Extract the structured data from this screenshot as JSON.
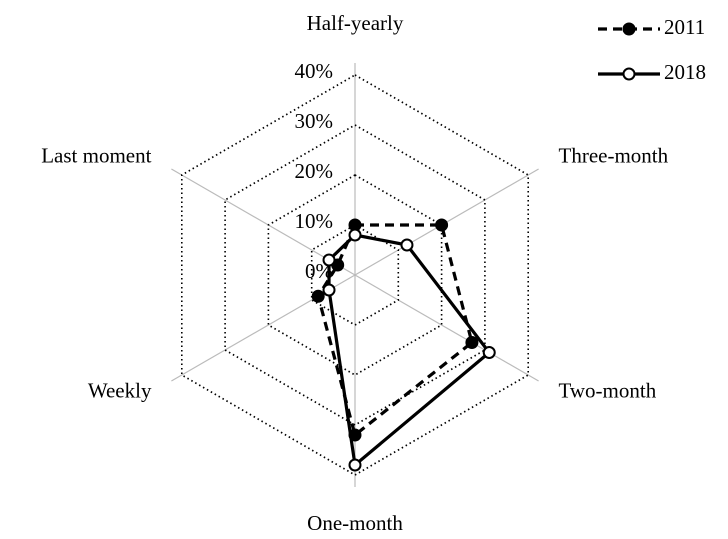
{
  "chart_data": {
    "type": "radar",
    "categories": [
      "Half-yearly",
      "Three-month",
      "Two-month",
      "One-month",
      "Weekly",
      "Last moment"
    ],
    "series": [
      {
        "name": "2011",
        "color": "#000000",
        "line_style": "dashed",
        "marker": "filled",
        "values": [
          10,
          20,
          27,
          32,
          8.5,
          4
        ]
      },
      {
        "name": "2018",
        "color": "#000000",
        "line_style": "solid",
        "marker": "open",
        "values": [
          8,
          12,
          31,
          38,
          6,
          6
        ]
      }
    ],
    "ylim": [
      0,
      40
    ],
    "yticks": [
      {
        "value": 0,
        "label": "0%"
      },
      {
        "value": 10,
        "label": "10%"
      },
      {
        "value": 20,
        "label": "20%"
      },
      {
        "value": 30,
        "label": "30%"
      },
      {
        "value": 40,
        "label": "40%"
      }
    ],
    "grid": true,
    "legend": "upper right"
  }
}
